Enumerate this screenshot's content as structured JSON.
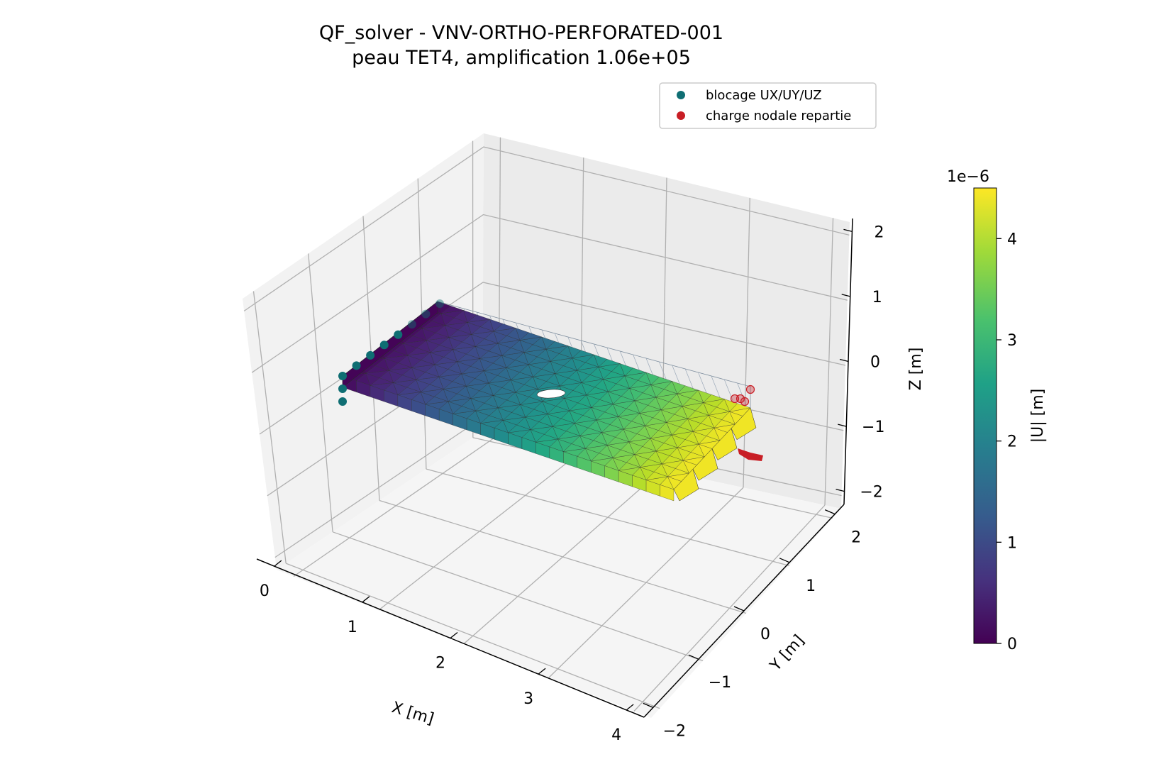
{
  "chart_data": {
    "type": "3d-mesh-surface",
    "title": "QF_solver - VNV-ORTHO-PERFORATED-001",
    "subtitle": "peau TET4, amplification 1.06e+05",
    "xlabel": "X [m]",
    "ylabel": "Y [m]",
    "zlabel": "Z [m]",
    "xticks": [
      "0",
      "1",
      "2",
      "3",
      "4"
    ],
    "yticks": [
      "−2",
      "−1",
      "0",
      "1",
      "2"
    ],
    "zticks": [
      "−2",
      "−1",
      "0",
      "1",
      "2"
    ],
    "xlim": [
      -0.2,
      4.2
    ],
    "ylim": [
      -2.2,
      2.2
    ],
    "zlim": [
      -2.2,
      2.2
    ],
    "grid": true,
    "legend_position": "top-right",
    "legend": [
      {
        "label": "blocage UX/UY/UZ",
        "color": "#0f6e73"
      },
      {
        "label": "charge nodale repartie",
        "color": "#c81e25"
      }
    ],
    "colorbar": {
      "label": "|U| [m]",
      "offset_text": "1e−6",
      "ticks": [
        "0",
        "1",
        "2",
        "3",
        "4"
      ],
      "min": 0,
      "max": 4.5,
      "colormap": "viridis"
    },
    "plate": {
      "x_range": [
        0,
        4
      ],
      "y_range": [
        -1,
        1
      ],
      "z_range": [
        -0.2,
        0.2
      ],
      "hole_center": [
        2,
        0
      ],
      "hole_radius": 0.15
    },
    "max_displacement": 4.5
  }
}
